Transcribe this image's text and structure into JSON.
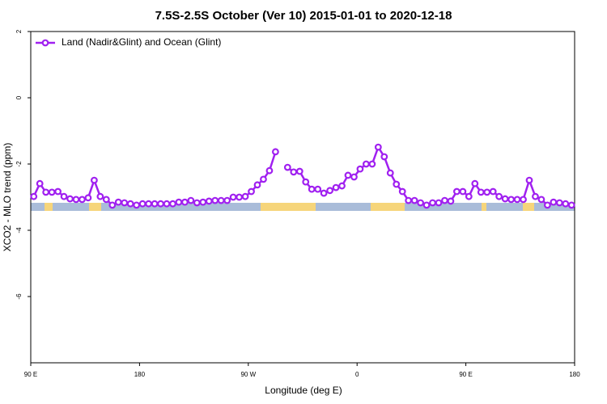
{
  "chart_data": {
    "type": "line",
    "title": "7.5S-2.5S October (Ver 10)   2015-01-01 to 2020-12-18",
    "x_label": "Longitude (deg E)",
    "y_label": "XCO2 - MLO trend (ppm)",
    "xlim": [
      90,
      540
    ],
    "xticks": [
      {
        "value": 90,
        "label": "90 E"
      },
      180,
      {
        "value": 270,
        "label": "90 W"
      },
      {
        "value": 360,
        "label": "0"
      },
      {
        "value": 450,
        "label": "90 E"
      },
      {
        "value": 540,
        "label": "180"
      }
    ],
    "ylim": [
      -8,
      2
    ],
    "yticks": [
      2,
      0,
      -2,
      -4,
      -6
    ],
    "legend": "top-left",
    "x": [
      92.5,
      97.5,
      102.5,
      107.5,
      112.5,
      117.5,
      122.5,
      127.5,
      132.5,
      137.5,
      142.5,
      147.5,
      152.5,
      157.5,
      162.5,
      167.5,
      172.5,
      177.5,
      182.5,
      187.5,
      192.5,
      197.5,
      202.5,
      207.5,
      212.5,
      217.5,
      222.5,
      227.5,
      232.5,
      237.5,
      242.5,
      247.5,
      252.5,
      257.5,
      262.5,
      267.5,
      272.5,
      277.5,
      282.5,
      287.5,
      292.5,
      297.5,
      302.5,
      307.5,
      312.5,
      317.5,
      322.5,
      327.5,
      332.5,
      337.5,
      342.5,
      347.5,
      352.5,
      357.5,
      362.5,
      367.5,
      372.5,
      377.5,
      382.5,
      387.5,
      392.5,
      397.5,
      402.5,
      407.5,
      412.5,
      417.5,
      422.5,
      427.5,
      432.5,
      437.5,
      442.5,
      447.5,
      452.5,
      457.5,
      462.5,
      467.5,
      472.5,
      477.5,
      482.5,
      487.5,
      492.5,
      497.5,
      502.5,
      507.5,
      512.5,
      517.5,
      522.5,
      527.5,
      532.5,
      537.5
    ],
    "series": [
      {
        "name": "Land (Nadir&Glint) and Ocean (Glint)",
        "color": "#a020f0",
        "values": [
          -2.98,
          -2.59,
          -2.85,
          -2.85,
          -2.83,
          -2.98,
          -3.05,
          -3.07,
          -3.07,
          -3.02,
          -2.49,
          -2.98,
          -3.07,
          -3.24,
          -3.15,
          -3.17,
          -3.2,
          -3.24,
          -3.2,
          -3.2,
          -3.2,
          -3.2,
          -3.2,
          -3.2,
          -3.15,
          -3.15,
          -3.1,
          -3.17,
          -3.15,
          -3.12,
          -3.1,
          -3.1,
          -3.1,
          -3.0,
          -3.0,
          -2.98,
          -2.83,
          -2.63,
          -2.46,
          -2.2,
          -1.63,
          null,
          -2.1,
          -2.24,
          -2.22,
          -2.54,
          -2.76,
          -2.76,
          -2.88,
          -2.8,
          -2.71,
          -2.66,
          -2.34,
          -2.39,
          -2.15,
          -2.0,
          -2.0,
          -1.49,
          -1.78,
          -2.27,
          -2.61,
          -2.83,
          -3.1,
          -3.1,
          -3.17,
          -3.24,
          -3.17,
          -3.17,
          -3.1,
          -3.12,
          -2.83,
          -2.83,
          -2.98,
          -2.59,
          -2.85,
          -2.85,
          -2.83,
          -2.98,
          -3.05,
          -3.07,
          -3.07,
          -3.07,
          -2.49,
          -2.98,
          -3.07,
          -3.24,
          -3.15,
          -3.17,
          -3.2,
          -3.24
        ]
      }
    ]
  }
}
